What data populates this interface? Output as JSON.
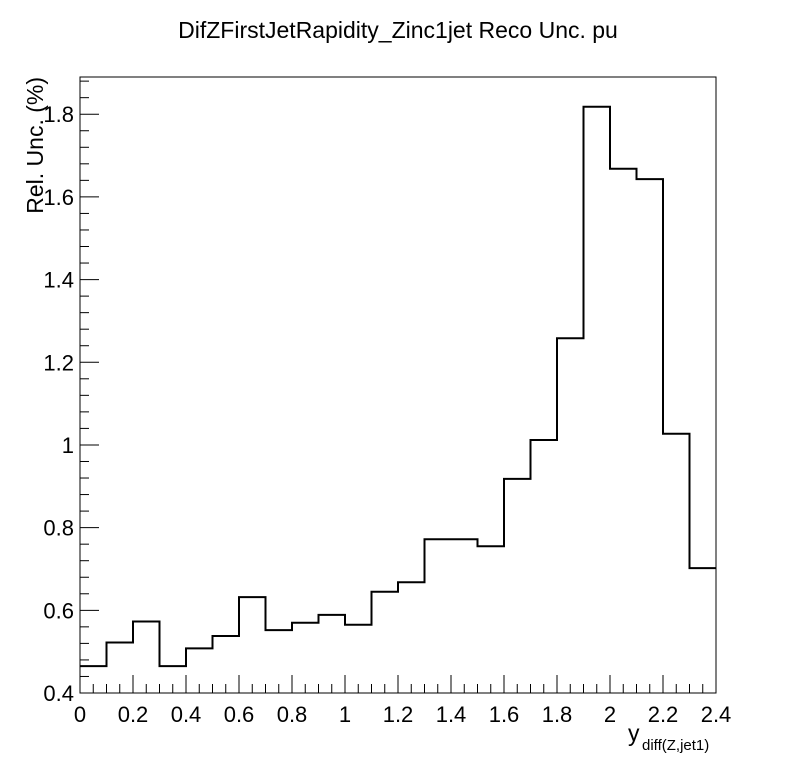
{
  "chart_data": {
    "type": "histogram-step",
    "title": "DifZFirstJetRapidity_Zinc1jet Reco Unc. pu",
    "xlabel_main": "y",
    "xlabel_sub": "diff(Z,jet1)",
    "ylabel": "Rel. Unc. (%)",
    "xlim": [
      0,
      2.4
    ],
    "ylim": [
      0.4,
      1.89
    ],
    "grid": false,
    "bin_edges": [
      0,
      0.1,
      0.2,
      0.3,
      0.4,
      0.5,
      0.6,
      0.7,
      0.8,
      0.9,
      1.0,
      1.1,
      1.2,
      1.3,
      1.5,
      1.6,
      1.7,
      1.8,
      1.9,
      2.0,
      2.1,
      2.2,
      2.3,
      2.4
    ],
    "values": [
      0.465,
      0.522,
      0.573,
      0.465,
      0.508,
      0.538,
      0.632,
      0.552,
      0.57,
      0.589,
      0.565,
      0.645,
      0.668,
      0.772,
      0.755,
      0.918,
      1.012,
      1.258,
      1.818,
      1.668,
      1.643,
      1.027,
      0.702
    ],
    "x_ticks": [
      {
        "value": 0,
        "label": "0"
      },
      {
        "value": 0.2,
        "label": "0.2"
      },
      {
        "value": 0.4,
        "label": "0.4"
      },
      {
        "value": 0.6,
        "label": "0.6"
      },
      {
        "value": 0.8,
        "label": "0.8"
      },
      {
        "value": 1.0,
        "label": "1"
      },
      {
        "value": 1.2,
        "label": "1.2"
      },
      {
        "value": 1.4,
        "label": "1.4"
      },
      {
        "value": 1.6,
        "label": "1.6"
      },
      {
        "value": 1.8,
        "label": "1.8"
      },
      {
        "value": 2.0,
        "label": "2"
      },
      {
        "value": 2.2,
        "label": "2.2"
      },
      {
        "value": 2.4,
        "label": "2.4"
      }
    ],
    "y_ticks": [
      {
        "value": 0.4,
        "label": "0.4"
      },
      {
        "value": 0.6,
        "label": "0.6"
      },
      {
        "value": 0.8,
        "label": "0.8"
      },
      {
        "value": 1.0,
        "label": "1"
      },
      {
        "value": 1.2,
        "label": "1.2"
      },
      {
        "value": 1.4,
        "label": "1.4"
      },
      {
        "value": 1.6,
        "label": "1.6"
      },
      {
        "value": 1.8,
        "label": "1.8"
      }
    ],
    "line_color": "#000000"
  }
}
